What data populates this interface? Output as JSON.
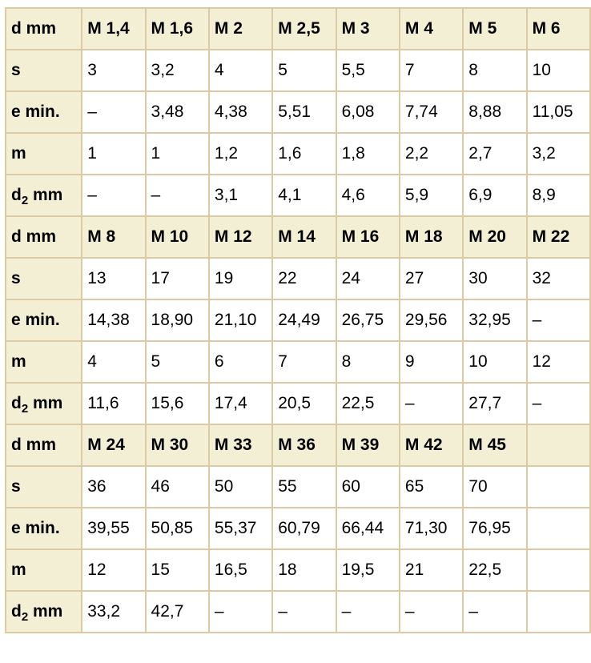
{
  "blocks": [
    {
      "header": [
        "M 1,4",
        "M 1,6",
        "M 2",
        "M 2,5",
        "M 3",
        "M 4",
        "M 5",
        "M 6"
      ],
      "s": [
        "3",
        "3,2",
        "4",
        "5",
        "5,5",
        "7",
        "8",
        "10"
      ],
      "e_min": [
        "–",
        "3,48",
        "4,38",
        "5,51",
        "6,08",
        "7,74",
        "8,88",
        "11,05"
      ],
      "m": [
        "1",
        "1",
        "1,2",
        "1,6",
        "1,8",
        "2,2",
        "2,7",
        "3,2"
      ],
      "d2": [
        "–",
        "–",
        "3,1",
        "4,1",
        "4,6",
        "5,9",
        "6,9",
        "8,9"
      ]
    },
    {
      "header": [
        "M 8",
        "M 10",
        "M 12",
        "M 14",
        "M 16",
        "M 18",
        "M 20",
        "M 22"
      ],
      "s": [
        "13",
        "17",
        "19",
        "22",
        "24",
        "27",
        "30",
        "32"
      ],
      "e_min": [
        "14,38",
        "18,90",
        "21,10",
        "24,49",
        "26,75",
        "29,56",
        "32,95",
        "–"
      ],
      "m": [
        "4",
        "5",
        "6",
        "7",
        "8",
        "9",
        "10",
        "12"
      ],
      "d2": [
        "11,6",
        "15,6",
        "17,4",
        "20,5",
        "22,5",
        "–",
        "27,7",
        "–"
      ]
    },
    {
      "header": [
        "M 24",
        "M 30",
        "M 33",
        "M 36",
        "M 39",
        "M 42",
        "M 45",
        ""
      ],
      "s": [
        "36",
        "46",
        "50",
        "55",
        "60",
        "65",
        "70",
        ""
      ],
      "e_min": [
        "39,55",
        "50,85",
        "55,37",
        "60,79",
        "66,44",
        "71,30",
        "76,95",
        ""
      ],
      "m": [
        "12",
        "15",
        "16,5",
        "18",
        "19,5",
        "21",
        "22,5",
        ""
      ],
      "d2": [
        "33,2",
        "42,7",
        "–",
        "–",
        "–",
        "–",
        "–",
        ""
      ]
    }
  ],
  "labels": {
    "d": "d mm",
    "s": "s",
    "e_min": "e min.",
    "m": "m",
    "d2_base": "d",
    "d2_sub": "2",
    "d2_unit": " mm"
  },
  "colors": {
    "header_bg": "#f3efd5",
    "border": "#dccaa4"
  }
}
